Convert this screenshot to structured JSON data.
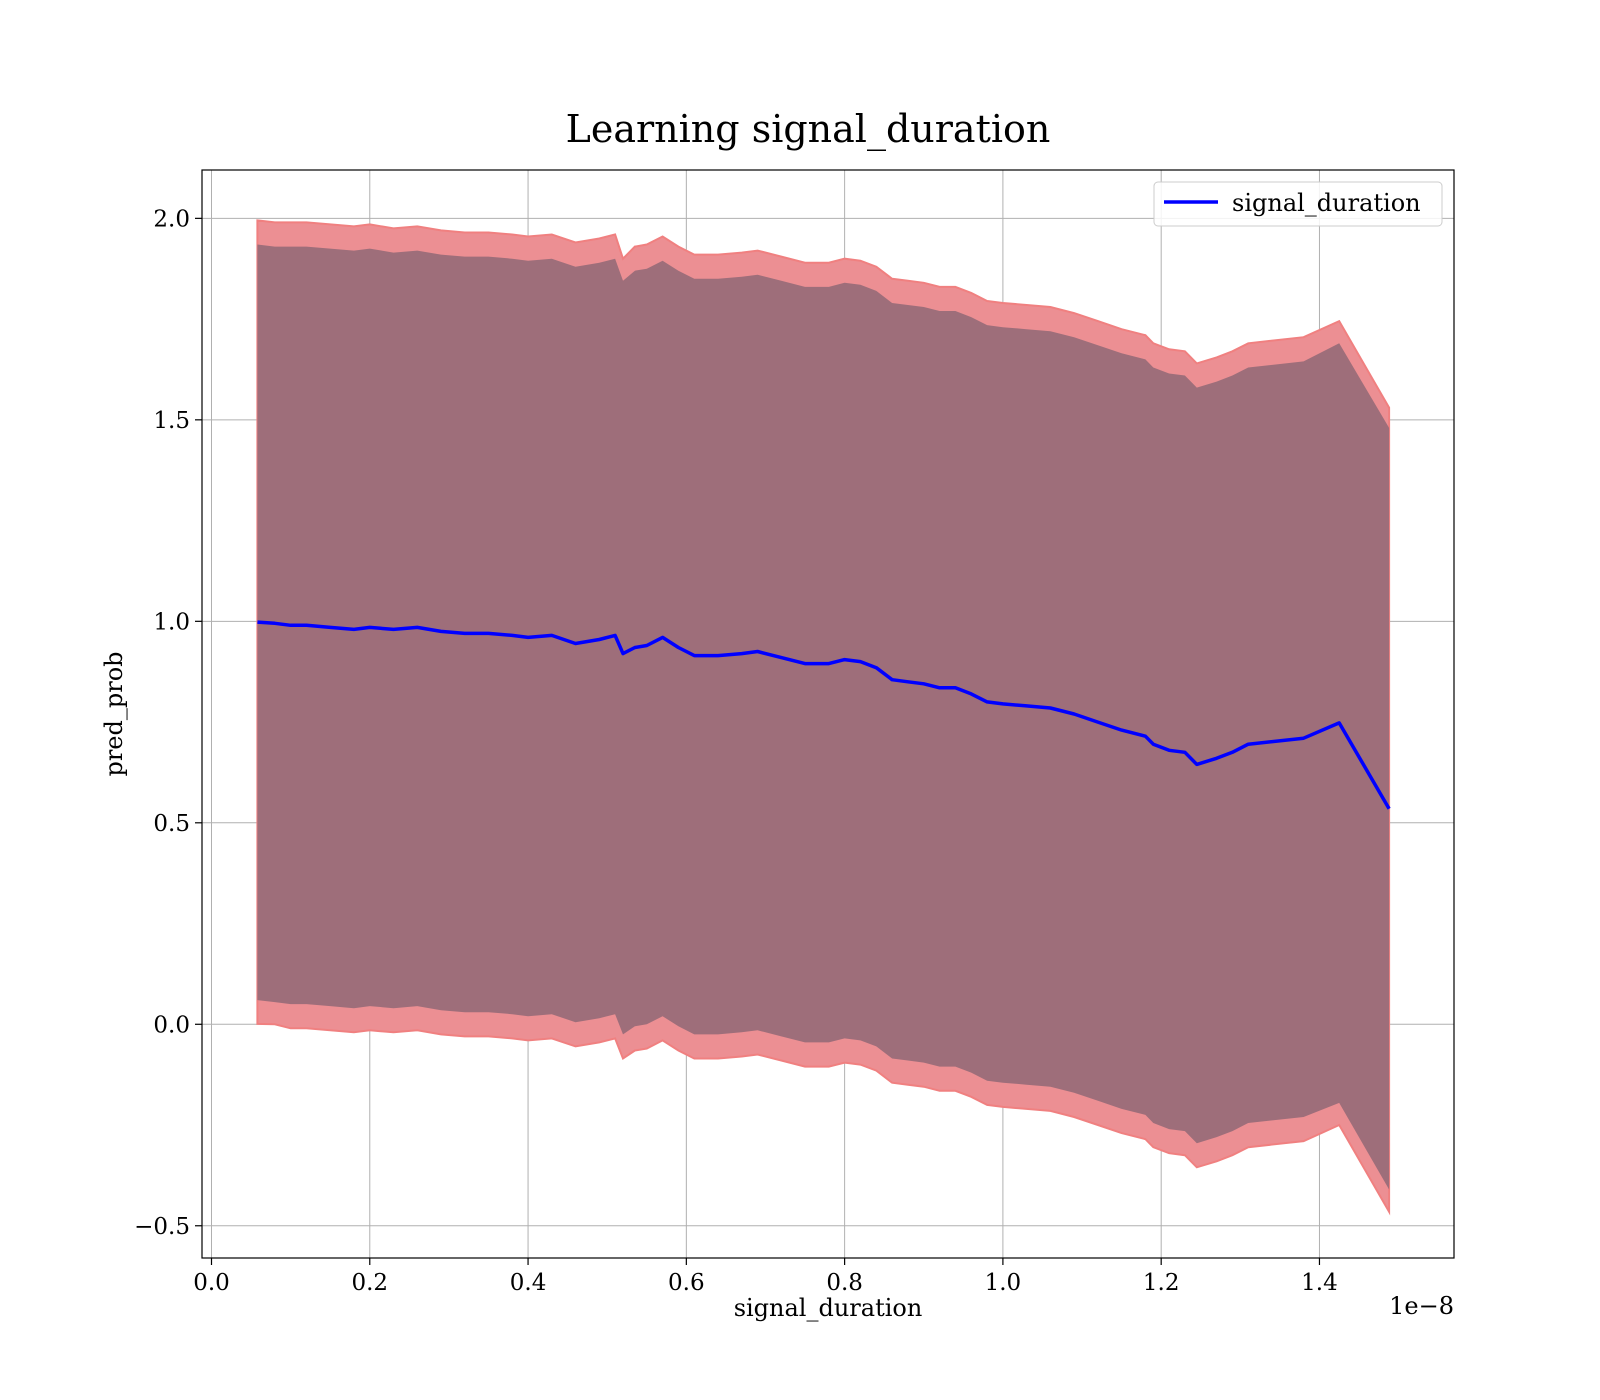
{
  "chart_data": {
    "type": "line",
    "title": "Learning signal_duration",
    "xlabel": "signal_duration",
    "ylabel": "pred_prob",
    "x_offset_text": "1e−8",
    "x_scale": 1e-08,
    "xlim": [
      -0.012,
      1.57
    ],
    "ylim": [
      -0.58,
      2.12
    ],
    "xticks": [
      0.0,
      0.2,
      0.4,
      0.6,
      0.8,
      1.0,
      1.2,
      1.4
    ],
    "xtick_labels": [
      "0.0",
      "0.2",
      "0.4",
      "0.6",
      "0.8",
      "1.0",
      "1.2",
      "1.4"
    ],
    "yticks": [
      -0.5,
      0.0,
      0.5,
      1.0,
      1.5,
      2.0
    ],
    "ytick_labels": [
      "−0.5",
      "0.0",
      "0.5",
      "1.0",
      "1.5",
      "2.0"
    ],
    "grid": true,
    "legend": {
      "position": "top-right",
      "entries": [
        "signal_duration"
      ]
    },
    "series": [
      {
        "name": "signal_duration",
        "color": "#0000ff",
        "x": [
          0.058,
          0.08,
          0.1,
          0.12,
          0.15,
          0.18,
          0.2,
          0.23,
          0.26,
          0.29,
          0.32,
          0.35,
          0.38,
          0.4,
          0.43,
          0.46,
          0.49,
          0.51,
          0.52,
          0.535,
          0.55,
          0.57,
          0.59,
          0.61,
          0.64,
          0.67,
          0.69,
          0.72,
          0.75,
          0.78,
          0.8,
          0.82,
          0.84,
          0.86,
          0.88,
          0.9,
          0.92,
          0.94,
          0.96,
          0.98,
          1.0,
          1.03,
          1.06,
          1.09,
          1.12,
          1.15,
          1.18,
          1.19,
          1.21,
          1.23,
          1.245,
          1.27,
          1.29,
          1.31,
          1.38,
          1.425,
          1.488
        ],
        "y": [
          0.998,
          0.995,
          0.99,
          0.99,
          0.985,
          0.98,
          0.985,
          0.98,
          0.985,
          0.975,
          0.97,
          0.97,
          0.965,
          0.96,
          0.965,
          0.945,
          0.955,
          0.965,
          0.92,
          0.935,
          0.94,
          0.96,
          0.935,
          0.915,
          0.915,
          0.92,
          0.925,
          0.91,
          0.895,
          0.895,
          0.905,
          0.9,
          0.885,
          0.855,
          0.85,
          0.845,
          0.835,
          0.835,
          0.82,
          0.8,
          0.795,
          0.79,
          0.785,
          0.77,
          0.75,
          0.73,
          0.715,
          0.695,
          0.68,
          0.675,
          0.645,
          0.66,
          0.675,
          0.695,
          0.71,
          0.748,
          0.535
        ]
      }
    ],
    "bands": [
      {
        "role": "outer",
        "fill": "#ec8f93",
        "edge": "#f08080",
        "upper": [
          1.995,
          1.99,
          1.99,
          1.99,
          1.985,
          1.98,
          1.985,
          1.975,
          1.98,
          1.97,
          1.965,
          1.965,
          1.96,
          1.955,
          1.96,
          1.94,
          1.95,
          1.96,
          1.9,
          1.93,
          1.935,
          1.955,
          1.93,
          1.91,
          1.91,
          1.915,
          1.92,
          1.905,
          1.89,
          1.89,
          1.9,
          1.895,
          1.88,
          1.85,
          1.845,
          1.84,
          1.83,
          1.83,
          1.815,
          1.795,
          1.79,
          1.785,
          1.78,
          1.765,
          1.745,
          1.725,
          1.71,
          1.69,
          1.675,
          1.67,
          1.64,
          1.655,
          1.67,
          1.69,
          1.705,
          1.745,
          1.53
        ],
        "lower": [
          0.001,
          0.0,
          -0.01,
          -0.01,
          -0.015,
          -0.02,
          -0.015,
          -0.02,
          -0.015,
          -0.025,
          -0.03,
          -0.03,
          -0.035,
          -0.04,
          -0.035,
          -0.055,
          -0.045,
          -0.035,
          -0.085,
          -0.065,
          -0.06,
          -0.04,
          -0.065,
          -0.085,
          -0.085,
          -0.08,
          -0.075,
          -0.09,
          -0.105,
          -0.105,
          -0.095,
          -0.1,
          -0.115,
          -0.145,
          -0.15,
          -0.155,
          -0.165,
          -0.165,
          -0.18,
          -0.2,
          -0.205,
          -0.21,
          -0.215,
          -0.23,
          -0.25,
          -0.27,
          -0.285,
          -0.305,
          -0.32,
          -0.325,
          -0.355,
          -0.34,
          -0.325,
          -0.305,
          -0.29,
          -0.25,
          -0.465
        ]
      },
      {
        "role": "inner",
        "fill": "#9e6e7a",
        "upper": [
          1.935,
          1.93,
          1.93,
          1.93,
          1.925,
          1.92,
          1.925,
          1.915,
          1.92,
          1.91,
          1.905,
          1.905,
          1.9,
          1.895,
          1.9,
          1.88,
          1.89,
          1.9,
          1.845,
          1.87,
          1.875,
          1.895,
          1.87,
          1.85,
          1.85,
          1.855,
          1.86,
          1.845,
          1.83,
          1.83,
          1.84,
          1.835,
          1.82,
          1.79,
          1.785,
          1.78,
          1.77,
          1.77,
          1.755,
          1.735,
          1.73,
          1.725,
          1.72,
          1.705,
          1.685,
          1.665,
          1.65,
          1.63,
          1.615,
          1.61,
          1.58,
          1.595,
          1.61,
          1.63,
          1.645,
          1.69,
          1.48
        ],
        "lower": [
          0.06,
          0.055,
          0.05,
          0.05,
          0.045,
          0.04,
          0.045,
          0.04,
          0.045,
          0.035,
          0.03,
          0.03,
          0.025,
          0.02,
          0.025,
          0.005,
          0.015,
          0.025,
          -0.025,
          -0.005,
          0.0,
          0.02,
          -0.005,
          -0.025,
          -0.025,
          -0.02,
          -0.015,
          -0.03,
          -0.045,
          -0.045,
          -0.035,
          -0.04,
          -0.055,
          -0.085,
          -0.09,
          -0.095,
          -0.105,
          -0.105,
          -0.12,
          -0.14,
          -0.145,
          -0.15,
          -0.155,
          -0.17,
          -0.19,
          -0.21,
          -0.225,
          -0.245,
          -0.26,
          -0.265,
          -0.295,
          -0.28,
          -0.265,
          -0.245,
          -0.23,
          -0.195,
          -0.41
        ]
      }
    ]
  }
}
